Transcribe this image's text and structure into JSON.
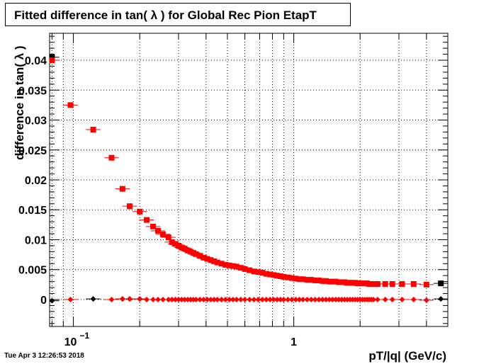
{
  "chart_data": {
    "type": "scatter",
    "title": "Fitted difference in tan( λ ) for Global Rec Pion EtapT",
    "xlabel": "pT/|q| (GeV/c)",
    "ylabel": "difference in tan( λ )",
    "x_scale": "log",
    "xlim": [
      0.078,
      5.0
    ],
    "ylim": [
      -0.0045,
      0.0445
    ],
    "grid": true,
    "x_ticks": [
      {
        "value": 0.1,
        "label": "10",
        "exponent": "−1"
      },
      {
        "value": 1,
        "label": "1",
        "exponent": ""
      }
    ],
    "y_ticks": [
      {
        "value": 0,
        "label": "0"
      },
      {
        "value": 0.005,
        "label": "0.005"
      },
      {
        "value": 0.01,
        "label": "0.01"
      },
      {
        "value": 0.015,
        "label": "0.015"
      },
      {
        "value": 0.02,
        "label": "0.02"
      },
      {
        "value": 0.025,
        "label": "0.025"
      },
      {
        "value": 0.03,
        "label": "0.03"
      },
      {
        "value": 0.035,
        "label": "0.035"
      },
      {
        "value": 0.04,
        "label": "0.04"
      }
    ],
    "series": [
      {
        "marker": "square",
        "color": "#000000",
        "x": [
          0.08,
          4.65
        ],
        "y": [
          0.0405,
          0.0027
        ]
      },
      {
        "marker": "square",
        "color": "#ff0000",
        "x": [
          0.08,
          0.097,
          0.123,
          0.149,
          0.167,
          0.18,
          0.2,
          0.215,
          0.23,
          0.242,
          0.255,
          0.27,
          0.28,
          0.29,
          0.3,
          0.31,
          0.32,
          0.33,
          0.34,
          0.35,
          0.36,
          0.375,
          0.39,
          0.405,
          0.42,
          0.435,
          0.45,
          0.47,
          0.49,
          0.51,
          0.53,
          0.55,
          0.575,
          0.6,
          0.63,
          0.66,
          0.69,
          0.72,
          0.75,
          0.78,
          0.81,
          0.84,
          0.87,
          0.9,
          0.94,
          0.98,
          1.02,
          1.06,
          1.1,
          1.15,
          1.2,
          1.25,
          1.3,
          1.35,
          1.4,
          1.45,
          1.5,
          1.55,
          1.6,
          1.65,
          1.7,
          1.75,
          1.8,
          1.85,
          1.9,
          1.95,
          2.0,
          2.05,
          2.1,
          2.15,
          2.2,
          2.25,
          2.3,
          2.4,
          2.6,
          2.8,
          3.1,
          3.5,
          4.0
        ],
        "y": [
          0.04,
          0.0325,
          0.0284,
          0.0237,
          0.0185,
          0.0156,
          0.0147,
          0.0133,
          0.0122,
          0.0115,
          0.0109,
          0.0104,
          0.0096,
          0.0093,
          0.009,
          0.0087,
          0.0085,
          0.0082,
          0.008,
          0.0078,
          0.0076,
          0.0073,
          0.007,
          0.0068,
          0.0066,
          0.0064,
          0.0062,
          0.006,
          0.0058,
          0.0057,
          0.0056,
          0.0055,
          0.0053,
          0.0051,
          0.0049,
          0.0047,
          0.0046,
          0.0045,
          0.0043,
          0.0042,
          0.0041,
          0.004,
          0.0039,
          0.0038,
          0.0037,
          0.0036,
          0.0035,
          0.0034,
          0.0034,
          0.0033,
          0.0033,
          0.0032,
          0.0032,
          0.0031,
          0.0031,
          0.003,
          0.003,
          0.003,
          0.0029,
          0.0029,
          0.0029,
          0.0028,
          0.0028,
          0.0028,
          0.0028,
          0.0027,
          0.0027,
          0.0027,
          0.0027,
          0.0027,
          0.0026,
          0.0026,
          0.0026,
          0.0026,
          0.0026,
          0.0026,
          0.0026,
          0.0026,
          0.0025
        ]
      },
      {
        "marker": "diamond",
        "color": "#000000",
        "x": [
          0.08,
          0.123,
          0.167,
          0.18,
          0.2,
          4.65
        ],
        "y": [
          -0.0002,
          0.0001,
          0.0001,
          0.0001,
          0.0001,
          0.0001
        ]
      },
      {
        "marker": "diamond",
        "color": "#ff0000",
        "x": [
          0.097,
          0.149,
          0.167,
          0.18,
          0.2,
          0.215,
          0.23,
          0.242,
          0.255,
          0.27,
          0.28,
          0.29,
          0.3,
          0.31,
          0.32,
          0.33,
          0.34,
          0.35,
          0.36,
          0.375,
          0.39,
          0.405,
          0.42,
          0.435,
          0.45,
          0.47,
          0.49,
          0.51,
          0.53,
          0.55,
          0.575,
          0.6,
          0.63,
          0.66,
          0.69,
          0.72,
          0.75,
          0.78,
          0.81,
          0.84,
          0.87,
          0.9,
          0.94,
          0.98,
          1.02,
          1.06,
          1.1,
          1.15,
          1.2,
          1.25,
          1.3,
          1.35,
          1.4,
          1.45,
          1.5,
          1.55,
          1.6,
          1.65,
          1.7,
          1.75,
          1.8,
          1.85,
          1.9,
          1.95,
          2.0,
          2.05,
          2.1,
          2.15,
          2.2,
          2.25,
          2.3,
          2.4,
          2.6,
          2.8,
          3.1,
          3.5,
          4.0
        ],
        "y": [
          0.0,
          0.0,
          0.0001,
          0.0001,
          0.0001,
          0.0,
          0.0,
          0.0,
          0.0,
          0.0,
          0.0,
          0.0,
          0.0,
          0.0,
          0.0,
          0.0,
          0.0,
          0.0,
          0.0,
          0.0,
          0.0,
          0.0,
          0.0,
          0.0,
          0.0,
          0.0,
          0.0,
          0.0,
          0.0,
          0.0,
          0.0,
          0.0,
          0.0,
          0.0,
          0.0,
          0.0,
          0.0,
          0.0,
          0.0,
          0.0,
          0.0,
          0.0,
          0.0,
          0.0,
          0.0,
          0.0,
          0.0,
          0.0,
          0.0,
          0.0,
          0.0,
          0.0,
          0.0,
          0.0,
          0.0,
          0.0,
          0.0,
          0.0,
          0.0,
          0.0,
          0.0,
          0.0,
          0.0,
          0.0,
          0.0,
          0.0,
          0.0,
          0.0,
          0.0,
          0.0,
          0.0,
          0.0,
          0.0,
          0.0,
          0.0,
          0.0,
          -0.0001
        ]
      }
    ]
  },
  "footer": {
    "timestamp": "Tue Apr  3 12:26:53 2018"
  }
}
